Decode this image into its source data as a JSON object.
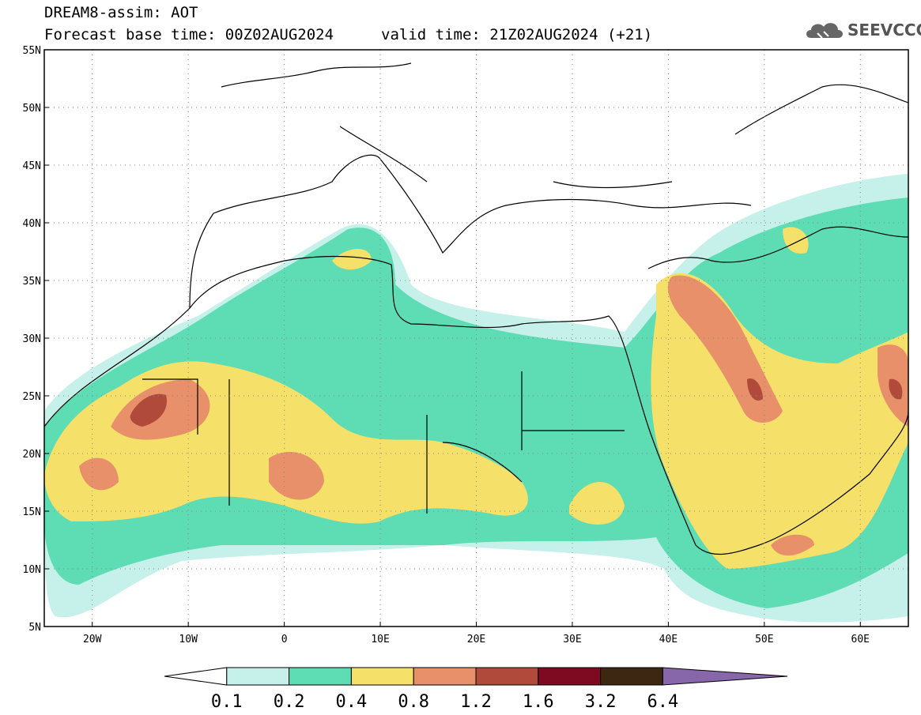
{
  "header": {
    "line1": "DREAM8-assim: AOT",
    "line2": "Forecast base time: 00Z02AUG2024",
    "valid": "valid time: 21Z02AUG2024 (+21)",
    "logo_text": "SEEVCCC"
  },
  "map": {
    "lon_range": [
      -25,
      65
    ],
    "lat_range": [
      5,
      55
    ],
    "lat_ticks": [
      {
        "value": 55,
        "label": "55N"
      },
      {
        "value": 50,
        "label": "50N"
      },
      {
        "value": 45,
        "label": "45N"
      },
      {
        "value": 40,
        "label": "40N"
      },
      {
        "value": 35,
        "label": "35N"
      },
      {
        "value": 30,
        "label": "30N"
      },
      {
        "value": 25,
        "label": "25N"
      },
      {
        "value": 20,
        "label": "20N"
      },
      {
        "value": 15,
        "label": "15N"
      },
      {
        "value": 10,
        "label": "10N"
      },
      {
        "value": 5,
        "label": "5N"
      }
    ],
    "lon_ticks": [
      {
        "value": -20,
        "label": "20W"
      },
      {
        "value": -10,
        "label": "10W"
      },
      {
        "value": 0,
        "label": "0"
      },
      {
        "value": 10,
        "label": "10E"
      },
      {
        "value": 20,
        "label": "20E"
      },
      {
        "value": 30,
        "label": "30E"
      },
      {
        "value": 40,
        "label": "40E"
      },
      {
        "value": 50,
        "label": "50E"
      },
      {
        "value": 60,
        "label": "60E"
      }
    ]
  },
  "colorbar": {
    "levels": [
      "0.1",
      "0.2",
      "0.4",
      "0.8",
      "1.2",
      "1.6",
      "3.2",
      "6.4"
    ],
    "colors": [
      "#ffffff",
      "#c6f0ea",
      "#5edcb4",
      "#f5e06a",
      "#e8906a",
      "#b04a3a",
      "#7e0a22",
      "#3d2612",
      "#8866aa"
    ]
  }
}
